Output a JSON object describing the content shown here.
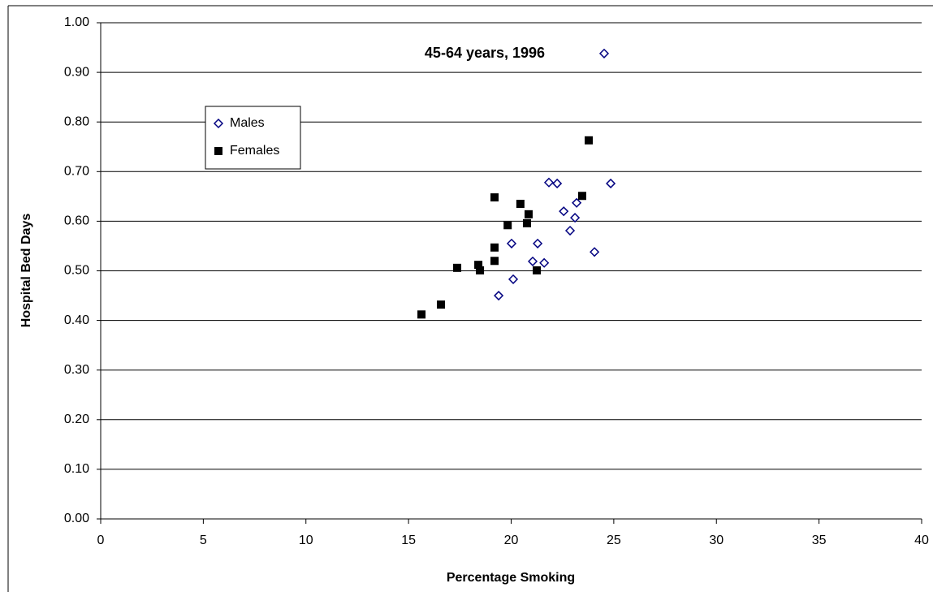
{
  "chart_data": {
    "type": "scatter",
    "title": "45-64 years, 1996",
    "x_label": "Percentage Smoking",
    "y_label": "Hospital Bed Days",
    "xlim": [
      0,
      40
    ],
    "xticks": [
      0,
      5,
      10,
      15,
      20,
      25,
      30,
      35,
      40
    ],
    "ylim": [
      0,
      1
    ],
    "yticks": [
      {
        "value": 0,
        "label": "0.00"
      },
      {
        "value": 0.1,
        "label": "0.10"
      },
      {
        "value": 0.2,
        "label": "0.20"
      },
      {
        "value": 0.3,
        "label": "0.30"
      },
      {
        "value": 0.4,
        "label": "0.40"
      },
      {
        "value": 0.5,
        "label": "0.50"
      },
      {
        "value": 0.6,
        "label": "0.60"
      },
      {
        "value": 0.7,
        "label": "0.70"
      },
      {
        "value": 0.8,
        "label": "0.80"
      },
      {
        "value": 0.9,
        "label": "0.90"
      },
      {
        "value": 1,
        "label": "1.00"
      }
    ],
    "grid": true,
    "legend": "upper-left",
    "series": [
      {
        "name": "Males",
        "color": "#000080",
        "marker": "diamond",
        "x": [
          24.53,
          24.85,
          21.84,
          22.24,
          22.56,
          23.19,
          23.11,
          22.87,
          20.02,
          21.29,
          24.06,
          21.05,
          21.61,
          20.1,
          19.39
        ],
        "values": [
          0.938,
          0.676,
          0.678,
          0.676,
          0.62,
          0.637,
          0.607,
          0.581,
          0.555,
          0.555,
          0.538,
          0.519,
          0.516,
          0.483,
          0.45
        ]
      },
      {
        "name": "Females",
        "color": "#000000",
        "marker": "square",
        "x": [
          23.78,
          23.46,
          19.19,
          20.45,
          20.85,
          20.77,
          19.83,
          19.19,
          19.19,
          18.4,
          17.37,
          18.48,
          21.25,
          16.58,
          15.63
        ],
        "values": [
          0.763,
          0.651,
          0.648,
          0.635,
          0.614,
          0.596,
          0.592,
          0.547,
          0.52,
          0.512,
          0.506,
          0.501,
          0.501,
          0.432,
          0.412
        ]
      }
    ]
  }
}
